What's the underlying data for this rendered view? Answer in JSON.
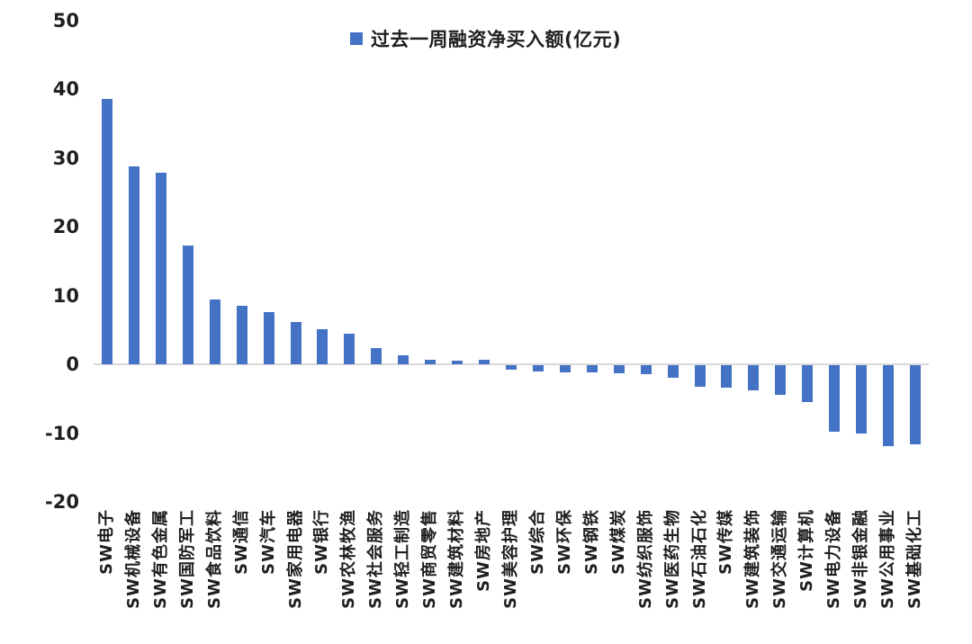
{
  "chart_data": {
    "type": "bar",
    "title": "过去一周融资净买入额(亿元)",
    "legend_position": "top-center",
    "grid": "zero-line-only",
    "bar_color": "#4472C4",
    "zero_line_color": "#D9D9D9",
    "text_color": "#1f1f1f",
    "ylim": [
      -20,
      50
    ],
    "yticks": [
      50,
      40,
      30,
      20,
      10,
      0,
      -10,
      -20
    ],
    "categories": [
      "SW电子",
      "SW机械设备",
      "SW有色金属",
      "SW国防军工",
      "SW食品饮料",
      "SW通信",
      "SW汽车",
      "SW家用电器",
      "SW银行",
      "SW农林牧渔",
      "SW社会服务",
      "SW轻工制造",
      "SW商贸零售",
      "SW建筑材料",
      "SW房地产",
      "SW美容护理",
      "SW综合",
      "SW环保",
      "SW钢铁",
      "SW煤炭",
      "SW纺织服饰",
      "SW医药生物",
      "SW石油石化",
      "SW传媒",
      "SW建筑装饰",
      "SW交通运输",
      "SW计算机",
      "SW电力设备",
      "SW非银金融",
      "SW公用事业",
      "SW基础化工"
    ],
    "values": [
      38.6,
      28.8,
      27.9,
      17.3,
      9.4,
      8.5,
      7.6,
      6.2,
      5.1,
      4.5,
      2.4,
      1.3,
      0.7,
      0.5,
      0.7,
      -0.7,
      -0.9,
      -1.0,
      -1.0,
      -1.2,
      -1.3,
      -1.8,
      -3.2,
      -3.3,
      -3.6,
      -4.3,
      -5.3,
      -9.7,
      -9.9,
      -11.7,
      -11.5
    ]
  }
}
